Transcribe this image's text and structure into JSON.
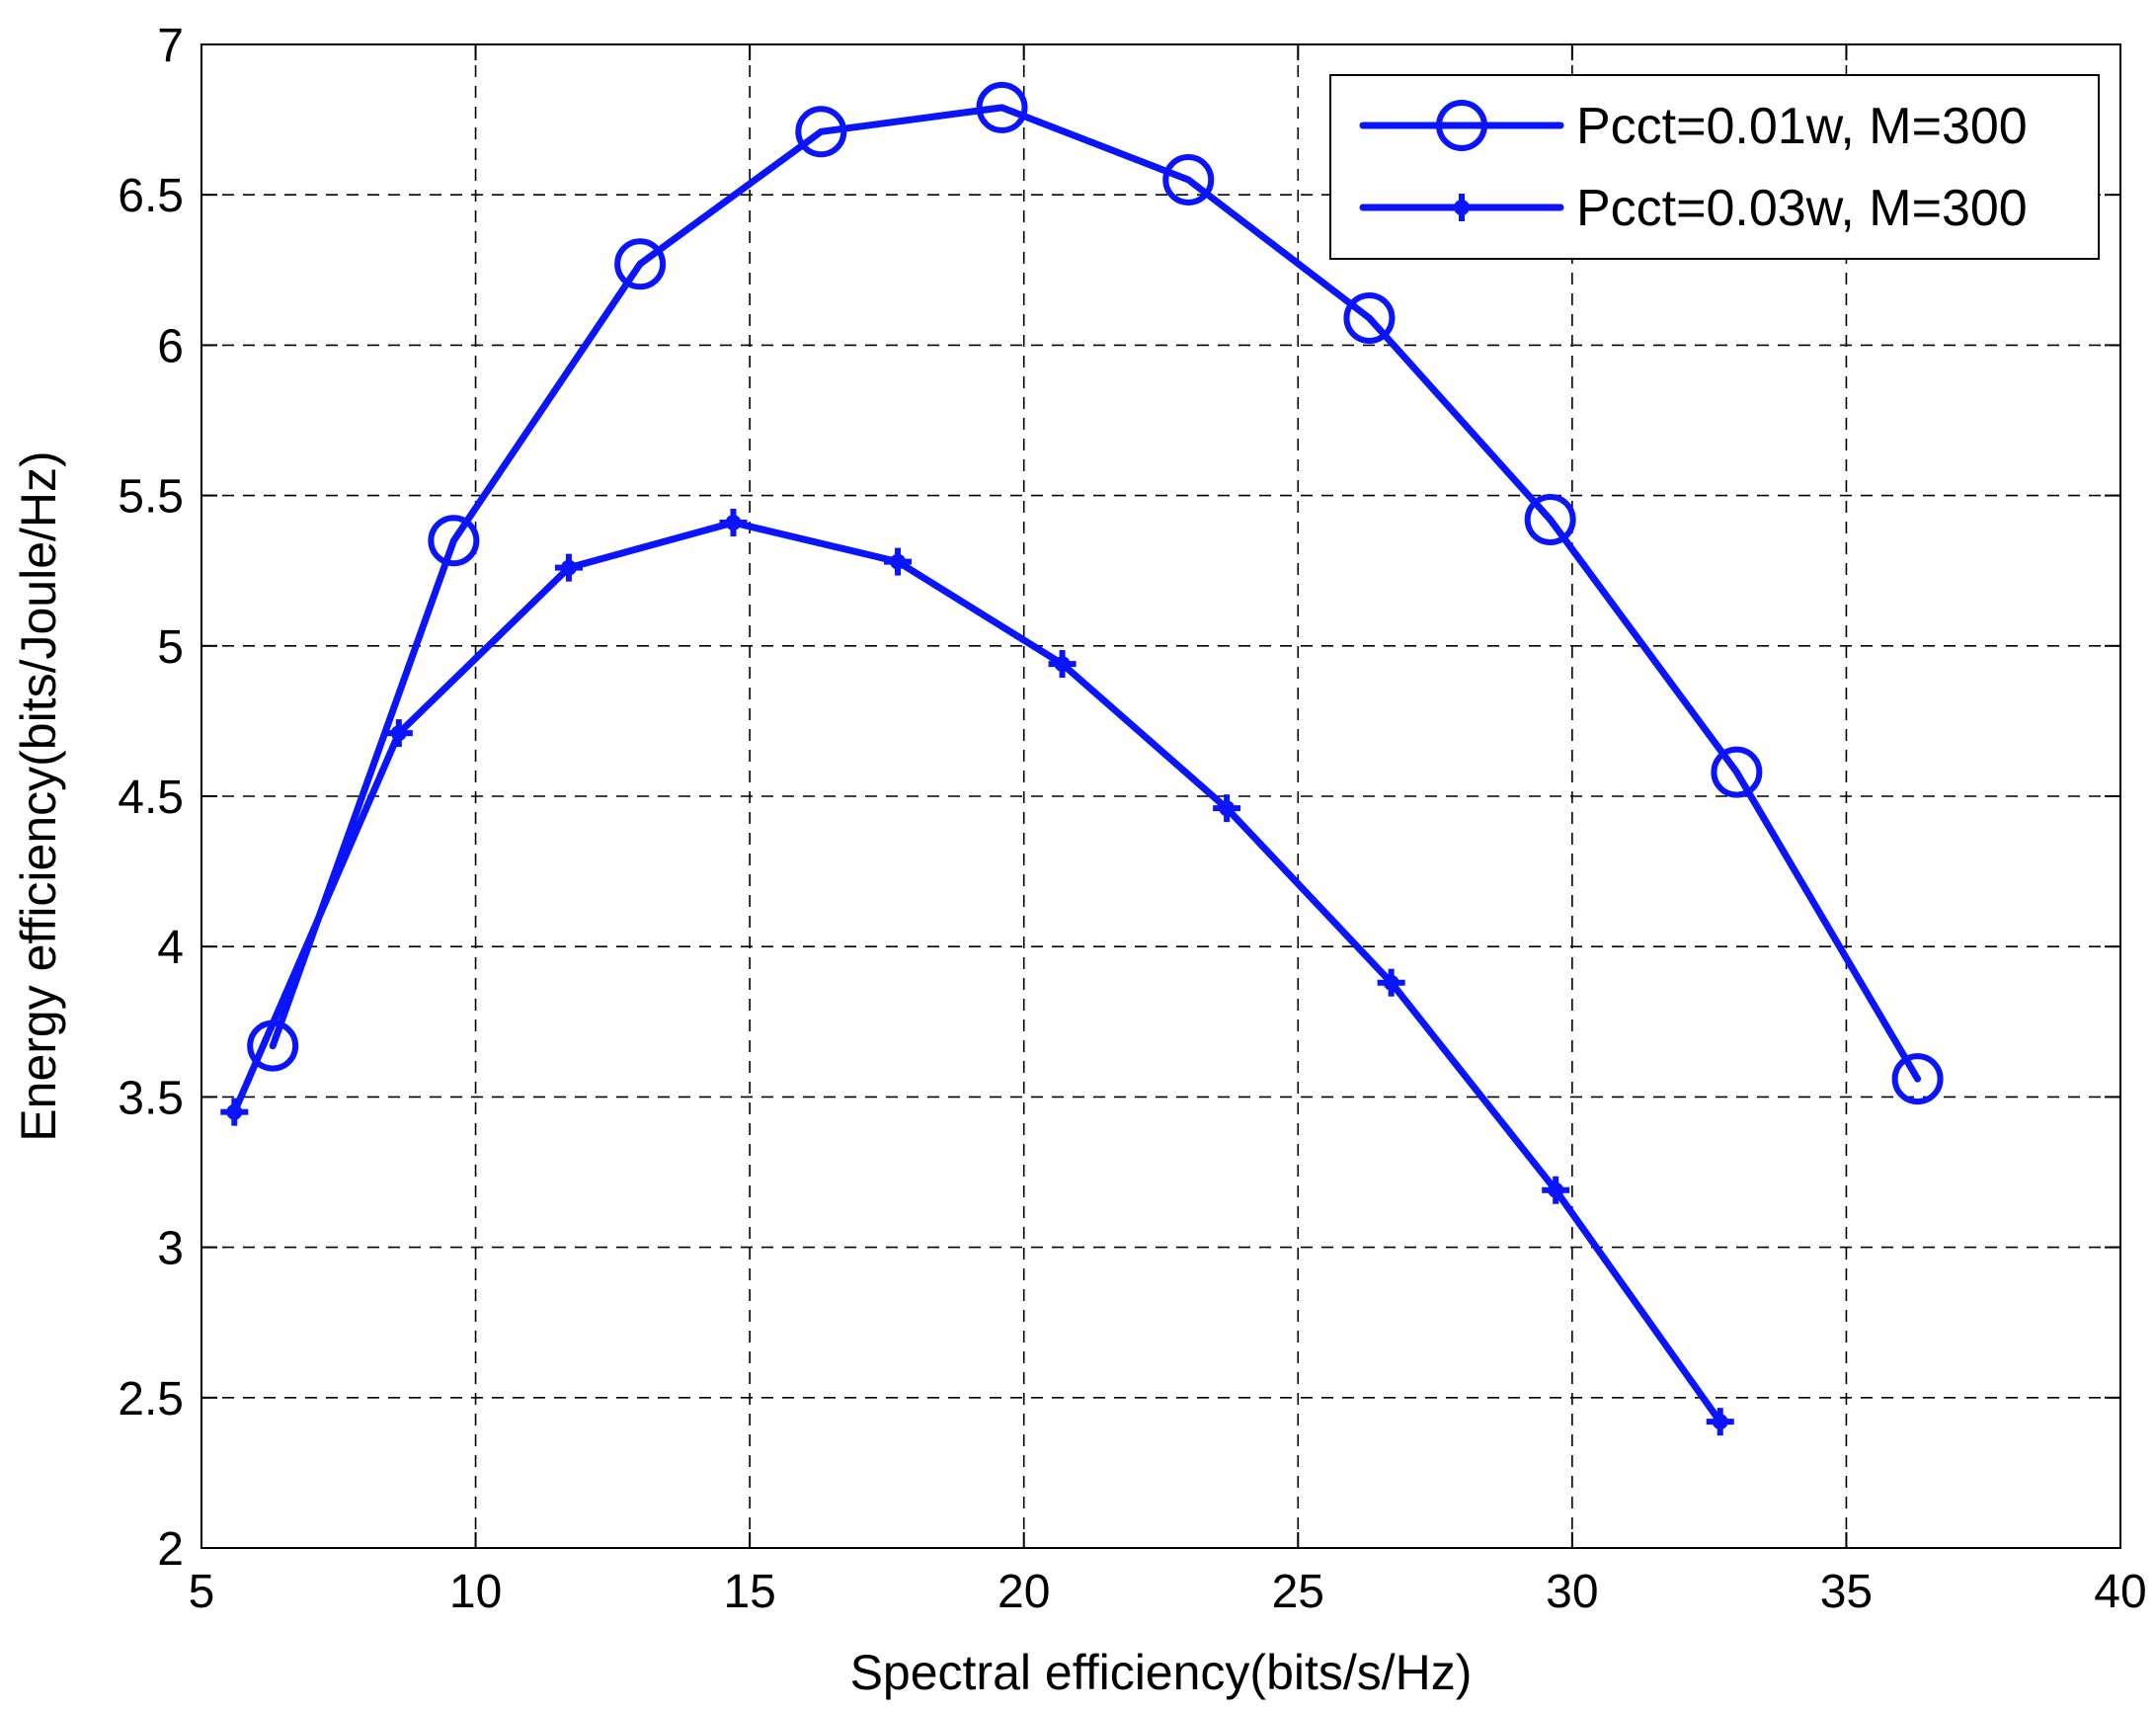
{
  "chart_data": {
    "type": "line",
    "xlabel": "Spectral efficiency(bits/s/Hz)",
    "ylabel": "Energy efficiency(bits/Joule/Hz)",
    "xlim": [
      5,
      40
    ],
    "ylim": [
      2,
      7
    ],
    "xticks": [
      5,
      10,
      15,
      20,
      25,
      30,
      35,
      40
    ],
    "yticks": [
      2,
      2.5,
      3,
      3.5,
      4,
      4.5,
      5,
      5.5,
      6,
      6.5,
      7
    ],
    "xtick_labels": [
      "5",
      "10",
      "15",
      "20",
      "25",
      "30",
      "35",
      "40"
    ],
    "ytick_labels": [
      "2",
      "2.5",
      "3",
      "3.5",
      "4",
      "4.5",
      "5",
      "5.5",
      "6",
      "6.5",
      "7"
    ],
    "grid": true,
    "legend_position": "top-right",
    "series": [
      {
        "name": "Pcct=0.01w, M=300",
        "marker": "circle",
        "color": "#0a14ff",
        "x": [
          6.3,
          9.6,
          13.0,
          16.3,
          19.6,
          23.0,
          26.3,
          29.6,
          33.0,
          36.3
        ],
        "y": [
          3.67,
          5.35,
          6.27,
          6.71,
          6.79,
          6.55,
          6.09,
          5.42,
          4.58,
          3.56
        ]
      },
      {
        "name": "Pcct=0.03w, M=300",
        "marker": "plus",
        "color": "#0a14ff",
        "x": [
          5.6,
          8.6,
          11.7,
          14.7,
          17.7,
          20.7,
          23.7,
          26.7,
          29.7,
          32.7
        ],
        "y": [
          3.45,
          4.71,
          5.26,
          5.41,
          5.28,
          4.94,
          4.46,
          3.88,
          3.19,
          2.42
        ]
      }
    ]
  }
}
